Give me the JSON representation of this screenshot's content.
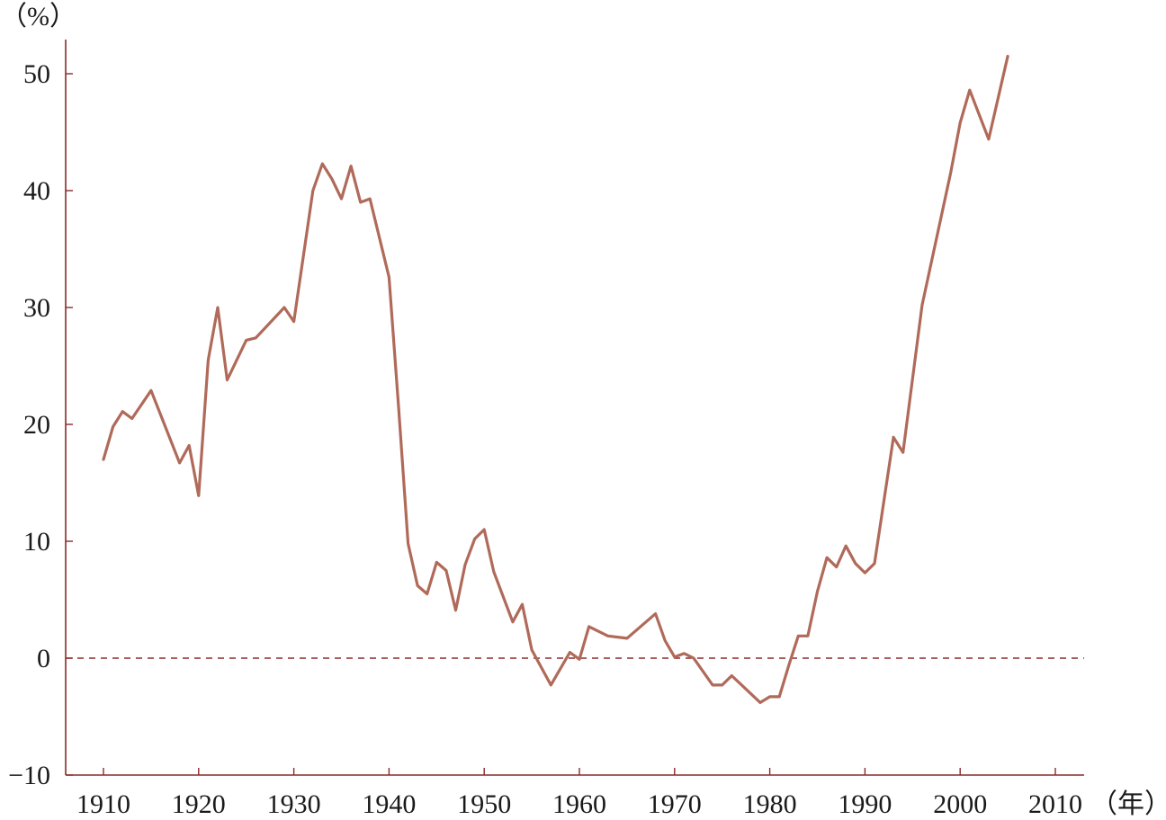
{
  "chart_data": {
    "type": "line",
    "title": "",
    "xlabel": "",
    "ylabel": "",
    "y_unit_label": "（%）",
    "x_unit_label": "（年）",
    "xlim": [
      1906,
      2013
    ],
    "ylim": [
      -10,
      55
    ],
    "x_ticks": [
      1910,
      1920,
      1930,
      1940,
      1950,
      1960,
      1970,
      1980,
      1990,
      2000,
      2010
    ],
    "y_ticks": [
      -10,
      0,
      10,
      20,
      30,
      40,
      50
    ],
    "y_tick_labels": [
      "−10",
      "0",
      "10",
      "20",
      "30",
      "40",
      "50"
    ],
    "grid": false,
    "reference_line": {
      "y": 0,
      "style": "dashed"
    },
    "colors": {
      "axis": "#8b2a2a",
      "line": "#b06a5a",
      "reference": "#8b2a2a"
    },
    "series": [
      {
        "x": [
          1910,
          1911,
          1912,
          1913,
          1915,
          1918,
          1919,
          1920,
          1921,
          1922,
          1923,
          1925,
          1926,
          1929,
          1930,
          1932,
          1933,
          1934,
          1935,
          1936,
          1937,
          1938,
          1940,
          1941,
          1942,
          1943,
          1944,
          1945,
          1946,
          1947,
          1948,
          1949,
          1950,
          1951,
          1953,
          1954,
          1955,
          1957,
          1959,
          1960,
          1961,
          1963,
          1965,
          1968,
          1969,
          1970,
          1971,
          1972,
          1974,
          1975,
          1976,
          1979,
          1980,
          1981,
          1982,
          1983,
          1984,
          1985,
          1986,
          1987,
          1988,
          1989,
          1990,
          1991,
          1993,
          1994,
          1996,
          1999,
          2000,
          2001,
          2003,
          2005
        ],
        "values": [
          17.0,
          19.8,
          21.1,
          20.5,
          22.9,
          16.7,
          18.2,
          13.9,
          25.5,
          30.0,
          23.8,
          27.2,
          27.4,
          30.0,
          28.8,
          40.0,
          42.3,
          41.0,
          39.3,
          42.1,
          39.0,
          39.3,
          32.6,
          21.5,
          9.8,
          6.2,
          5.5,
          8.2,
          7.5,
          4.1,
          8.0,
          10.2,
          11.0,
          7.4,
          3.1,
          4.6,
          0.7,
          -2.3,
          0.5,
          -0.1,
          2.7,
          1.9,
          1.7,
          3.8,
          1.5,
          0.1,
          0.4,
          0.0,
          -2.3,
          -2.3,
          -1.5,
          -3.8,
          -3.3,
          -3.3,
          -0.6,
          1.9,
          1.9,
          5.7,
          8.6,
          7.8,
          9.6,
          8.1,
          7.3,
          8.1,
          18.9,
          17.6,
          30.2,
          41.5,
          45.8,
          48.6,
          44.4,
          51.5
        ]
      }
    ]
  }
}
